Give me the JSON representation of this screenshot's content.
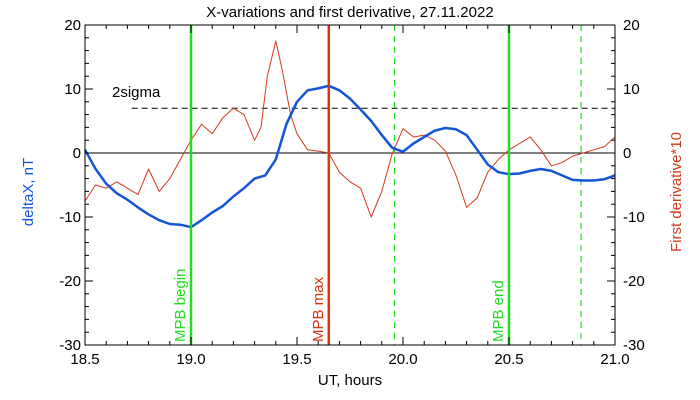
{
  "chart_data": {
    "type": "line",
    "title": "X-variations and first derivative, 27.11.2022",
    "xlabel": "UT, hours",
    "ylabel_left": "deltaX, nT",
    "ylabel_right": "First derivative*10",
    "xlim": [
      18.5,
      21.0
    ],
    "ylim": [
      -30,
      20
    ],
    "x_ticks": [
      "18.5",
      "19.0",
      "19.5",
      "20.0",
      "20.5",
      "21.0"
    ],
    "y_ticks": [
      "20",
      "10",
      "0",
      "-10",
      "-20",
      "-30"
    ],
    "threshold_label": "2sigma",
    "threshold_value": 7,
    "zero_line": 0,
    "colors": {
      "deltaX": "#1454d6",
      "derivative": "#d43a1c",
      "mpb_edges": "#22dd22",
      "mpb_max": "#dd3311",
      "dashed_green": "#22dd22",
      "axes": "#000000"
    },
    "vertical_markers": [
      {
        "x": 19.0,
        "label": "MPB begin",
        "color": "#22dd22",
        "style": "solid"
      },
      {
        "x": 19.65,
        "label": "MPB max",
        "color": "#dd3311",
        "style": "solid"
      },
      {
        "x": 20.5,
        "label": "MPB end",
        "color": "#22dd22",
        "style": "solid"
      }
    ],
    "dashed_markers": [
      19.96,
      20.84
    ],
    "series": [
      {
        "name": "deltaX, nT",
        "color": "#1454d6",
        "x": [
          18.5,
          18.55,
          18.6,
          18.65,
          18.7,
          18.75,
          18.8,
          18.85,
          18.9,
          18.95,
          19.0,
          19.05,
          19.1,
          19.15,
          19.2,
          19.25,
          19.3,
          19.35,
          19.4,
          19.45,
          19.5,
          19.55,
          19.6,
          19.65,
          19.7,
          19.75,
          19.8,
          19.85,
          19.9,
          19.95,
          20.0,
          20.05,
          20.1,
          20.15,
          20.2,
          20.25,
          20.3,
          20.35,
          20.4,
          20.45,
          20.5,
          20.55,
          20.6,
          20.65,
          20.7,
          20.75,
          20.8,
          20.85,
          20.9,
          20.95,
          21.0
        ],
        "y": [
          0.5,
          -2.5,
          -4.8,
          -6.3,
          -7.3,
          -8.5,
          -9.6,
          -10.5,
          -11.1,
          -11.2,
          -11.6,
          -10.5,
          -9.3,
          -8.3,
          -6.8,
          -5.5,
          -4.0,
          -3.5,
          -1.0,
          4.5,
          8.0,
          9.8,
          10.1,
          10.5,
          9.8,
          8.5,
          6.8,
          5.0,
          2.8,
          0.8,
          0.2,
          1.5,
          2.5,
          3.5,
          3.9,
          3.7,
          2.8,
          0.5,
          -1.8,
          -3.0,
          -3.3,
          -3.2,
          -2.8,
          -2.5,
          -2.8,
          -3.5,
          -4.2,
          -4.3,
          -4.3,
          -4.1,
          -3.5
        ]
      },
      {
        "name": "First derivative*10",
        "color": "#d43a1c",
        "x": [
          18.5,
          18.55,
          18.6,
          18.65,
          18.7,
          18.75,
          18.8,
          18.85,
          18.9,
          18.95,
          19.0,
          19.05,
          19.1,
          19.15,
          19.2,
          19.25,
          19.3,
          19.33,
          19.36,
          19.4,
          19.43,
          19.47,
          19.5,
          19.55,
          19.6,
          19.65,
          19.7,
          19.75,
          19.8,
          19.85,
          19.9,
          19.95,
          20.0,
          20.05,
          20.1,
          20.15,
          20.2,
          20.25,
          20.3,
          20.35,
          20.4,
          20.45,
          20.5,
          20.55,
          20.6,
          20.65,
          20.7,
          20.75,
          20.8,
          20.85,
          20.9,
          20.95,
          21.0
        ],
        "y": [
          -7.5,
          -5.0,
          -5.5,
          -4.5,
          -5.5,
          -6.5,
          -2.5,
          -6.0,
          -4.0,
          -1.0,
          2.0,
          4.5,
          3.0,
          5.5,
          7.0,
          6.0,
          2.0,
          4.0,
          12.0,
          17.5,
          13.0,
          6.0,
          3.0,
          0.5,
          0.3,
          0.0,
          -3.0,
          -4.5,
          -5.5,
          -10.0,
          -6.0,
          0.0,
          3.8,
          2.5,
          2.8,
          2.0,
          0.3,
          -3.5,
          -8.5,
          -7.0,
          -3.0,
          -1.0,
          0.5,
          1.5,
          2.5,
          0.5,
          -2.0,
          -1.5,
          -0.5,
          0.0,
          0.5,
          1.0,
          2.5
        ]
      }
    ]
  }
}
